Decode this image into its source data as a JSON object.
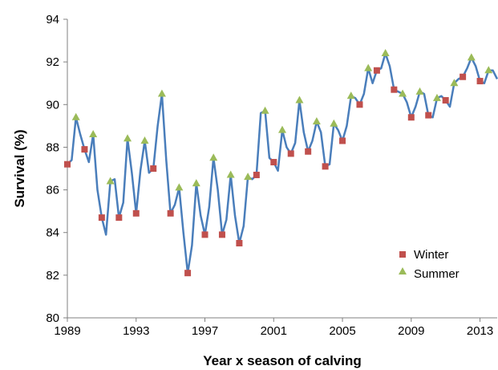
{
  "chart_data": {
    "type": "line",
    "xlabel": "Year x season of calving",
    "ylabel": "Survival (%)",
    "xlim": [
      1989,
      2014
    ],
    "ylim": [
      80,
      94
    ],
    "x_ticks": [
      1989,
      1993,
      1997,
      2001,
      2005,
      2009,
      2013
    ],
    "y_ticks": [
      80,
      82,
      84,
      86,
      88,
      90,
      92,
      94
    ],
    "grid": false,
    "legend_position": "bottom-right",
    "line_color": "#4A7EBB",
    "line_series": {
      "x": [
        1989.0,
        1989.25,
        1989.5,
        1989.75,
        1990.0,
        1990.25,
        1990.5,
        1990.75,
        1991.0,
        1991.25,
        1991.5,
        1991.75,
        1992.0,
        1992.25,
        1992.5,
        1992.75,
        1993.0,
        1993.25,
        1993.5,
        1993.75,
        1994.0,
        1994.25,
        1994.5,
        1994.75,
        1995.0,
        1995.25,
        1995.5,
        1995.75,
        1996.0,
        1996.25,
        1996.5,
        1996.75,
        1997.0,
        1997.25,
        1997.5,
        1997.75,
        1998.0,
        1998.25,
        1998.5,
        1998.75,
        1999.0,
        1999.25,
        1999.5,
        1999.75,
        2000.0,
        2000.25,
        2000.5,
        2000.75,
        2001.0,
        2001.25,
        2001.5,
        2001.75,
        2002.0,
        2002.25,
        2002.5,
        2002.75,
        2003.0,
        2003.25,
        2003.5,
        2003.75,
        2004.0,
        2004.25,
        2004.5,
        2004.75,
        2005.0,
        2005.25,
        2005.5,
        2005.75,
        2006.0,
        2006.25,
        2006.5,
        2006.75,
        2007.0,
        2007.25,
        2007.5,
        2007.75,
        2008.0,
        2008.25,
        2008.5,
        2008.75,
        2009.0,
        2009.25,
        2009.5,
        2009.75,
        2010.0,
        2010.25,
        2010.5,
        2010.75,
        2011.0,
        2011.25,
        2011.5,
        2011.75,
        2012.0,
        2012.25,
        2012.5,
        2012.75,
        2013.0,
        2013.25,
        2013.5,
        2013.75,
        2014.0
      ],
      "y": [
        87.2,
        87.4,
        89.4,
        88.6,
        87.9,
        87.3,
        88.6,
        86.0,
        84.7,
        83.9,
        86.4,
        86.5,
        84.7,
        85.4,
        88.4,
        86.8,
        84.9,
        86.9,
        88.3,
        86.8,
        87.0,
        89.0,
        90.5,
        87.4,
        84.9,
        85.3,
        86.1,
        84.0,
        82.1,
        83.4,
        86.3,
        84.8,
        83.9,
        85.2,
        87.5,
        86.0,
        83.9,
        84.6,
        86.7,
        84.8,
        83.5,
        84.3,
        86.6,
        86.5,
        86.7,
        89.6,
        89.7,
        87.5,
        87.3,
        86.9,
        88.8,
        88.0,
        87.7,
        88.2,
        90.2,
        88.7,
        87.8,
        88.3,
        89.2,
        88.7,
        87.1,
        87.2,
        89.1,
        88.8,
        88.3,
        89.0,
        90.4,
        90.3,
        90.0,
        90.5,
        91.7,
        91.0,
        91.6,
        91.7,
        92.4,
        91.8,
        90.7,
        90.6,
        90.5,
        90.1,
        89.4,
        89.9,
        90.6,
        90.5,
        89.5,
        89.4,
        90.3,
        90.4,
        90.2,
        89.9,
        91.0,
        91.2,
        91.3,
        91.7,
        92.2,
        91.8,
        91.1,
        91.0,
        91.6,
        91.6,
        91.2
      ]
    },
    "series": [
      {
        "name": "Winter",
        "marker": "square",
        "color": "#C0504D",
        "x": [
          1989.0,
          1990.0,
          1991.0,
          1992.0,
          1993.0,
          1994.0,
          1995.0,
          1996.0,
          1997.0,
          1998.0,
          1999.0,
          2000.0,
          2001.0,
          2002.0,
          2003.0,
          2004.0,
          2005.0,
          2006.0,
          2007.0,
          2008.0,
          2009.0,
          2010.0,
          2011.0,
          2012.0,
          2013.0
        ],
        "values": [
          87.2,
          87.9,
          84.7,
          84.7,
          84.9,
          87.0,
          84.9,
          82.1,
          83.9,
          83.9,
          83.5,
          86.7,
          87.3,
          87.7,
          87.8,
          87.1,
          88.3,
          90.0,
          91.6,
          90.7,
          89.4,
          89.5,
          90.2,
          91.3,
          91.1
        ]
      },
      {
        "name": "Summer",
        "marker": "triangle",
        "color": "#9BBB59",
        "x": [
          1989.5,
          1990.5,
          1991.5,
          1992.5,
          1993.5,
          1994.5,
          1995.5,
          1996.5,
          1997.5,
          1998.5,
          1999.5,
          2000.5,
          2001.5,
          2002.5,
          2003.5,
          2004.5,
          2005.5,
          2006.5,
          2007.5,
          2008.5,
          2009.5,
          2010.5,
          2011.5,
          2012.5,
          2013.5
        ],
        "values": [
          89.4,
          88.6,
          86.4,
          88.4,
          88.3,
          90.5,
          86.1,
          86.3,
          87.5,
          86.7,
          86.6,
          89.7,
          88.8,
          90.2,
          89.2,
          89.1,
          90.4,
          91.7,
          92.4,
          90.5,
          90.6,
          90.3,
          91.0,
          92.2,
          91.6
        ]
      }
    ]
  }
}
